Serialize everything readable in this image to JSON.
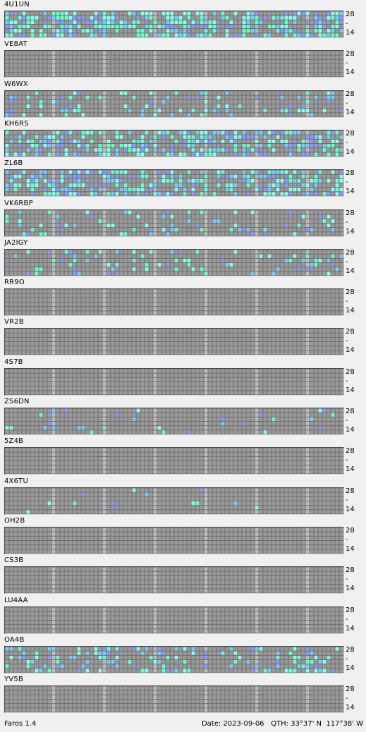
{
  "band_labels": {
    "high": "28",
    "low": "14",
    "tick": "-"
  },
  "colors": {
    "background": "#6f6f6f",
    "cell_off": "#9a9a9a",
    "cell_dark": "#bdbdbd",
    "signal_strong": "#66ffcc",
    "signal_mid": "#88ffee",
    "signal_weak": "#77ccff",
    "signal_low": "#8899ff"
  },
  "stations": [
    {
      "call": "4U1UN",
      "activity": 0.55
    },
    {
      "call": "VE8AT",
      "activity": 0.0
    },
    {
      "call": "W6WX",
      "activity": 0.2
    },
    {
      "call": "KH6RS",
      "activity": 0.5
    },
    {
      "call": "ZL6B",
      "activity": 0.45
    },
    {
      "call": "VK6RBP",
      "activity": 0.12
    },
    {
      "call": "JA2IGY",
      "activity": 0.15
    },
    {
      "call": "RR9O",
      "activity": 0.0
    },
    {
      "call": "VR2B",
      "activity": 0.0
    },
    {
      "call": "4S7B",
      "activity": 0.0
    },
    {
      "call": "ZS6DN",
      "activity": 0.06
    },
    {
      "call": "5Z4B",
      "activity": 0.0
    },
    {
      "call": "4X6TU",
      "activity": 0.02
    },
    {
      "call": "OH2B",
      "activity": 0.0
    },
    {
      "call": "CS3B",
      "activity": 0.0
    },
    {
      "call": "LU4AA",
      "activity": 0.0
    },
    {
      "call": "OA4B",
      "activity": 0.25
    },
    {
      "call": "YV5B",
      "activity": 0.0
    }
  ],
  "status": {
    "app_name": "Faros 1.4",
    "date_label": "Date:",
    "date": "2023-09-06",
    "qth_label": "QTH:",
    "qth": "33°37' N  117°38' W"
  }
}
